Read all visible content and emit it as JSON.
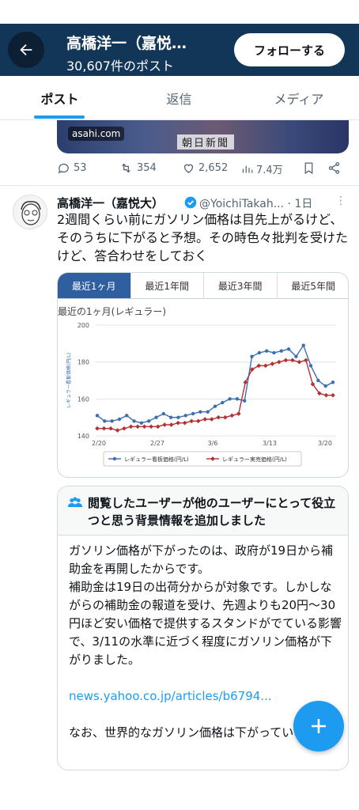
{
  "header": {
    "name": "高橋洋一（嘉悦…",
    "post_count": "30,607件のポスト",
    "follow_label": "フォローする"
  },
  "tabs": [
    {
      "label": "ポスト",
      "active": true
    },
    {
      "label": "返信",
      "active": false
    },
    {
      "label": "メディア",
      "active": false
    }
  ],
  "prev_tweet": {
    "image_source": "asahi.com",
    "image_caption": "朝日新聞",
    "replies": "53",
    "retweets": "354",
    "likes": "2,652",
    "views": "7.4万"
  },
  "tweet": {
    "author_name": "高橋洋一（嘉悦大）",
    "handle": "@YoichiTakah...",
    "time": "· 1日",
    "text": "2週間くらい前にガソリン価格は目先上がるけど、そのうちに下がると予想。その時色々批判を受けたけど、答合わせをしておく",
    "chart_tabs": [
      "最近1ヶ月",
      "最近1年間",
      "最近3年間",
      "最近5年間"
    ],
    "chart_heading": "最近の1ヶ月(レギュラー)"
  },
  "chart_data": {
    "type": "line",
    "title": "最近の1ヶ月(レギュラー)",
    "ylabel": "レギュラー看板価格(円/L)",
    "ylim": [
      140,
      200
    ],
    "yticks": [
      "200",
      "180",
      "160",
      "140"
    ],
    "xticks": [
      "2/20",
      "2/27",
      "3/6",
      "3/13",
      "3/20"
    ],
    "series": [
      {
        "name": "レギュラー看板価格(円/L)",
        "color": "#3a6fb0",
        "values": [
          151,
          148,
          148,
          149,
          151,
          148,
          147,
          148,
          150,
          152,
          150,
          150,
          151,
          152,
          153,
          153,
          156,
          158,
          160,
          160,
          159,
          183,
          185,
          186,
          185,
          186,
          187,
          183,
          189,
          178,
          170,
          167,
          169
        ]
      },
      {
        "name": "レギュラー実売価格(円/L)",
        "color": "#b53131",
        "values": [
          144,
          144,
          144,
          143,
          144,
          145,
          145,
          145,
          145,
          145,
          146,
          146,
          147,
          147,
          148,
          148,
          149,
          149,
          150,
          150,
          151,
          152,
          169,
          176,
          178,
          178,
          179,
          180,
          181,
          181,
          180,
          181,
          168,
          163,
          162,
          162
        ]
      }
    ]
  },
  "note": {
    "title": "閲覧したユーザーが他のユーザーにとって役立つと思う背景情報を追加しました",
    "paragraph1": "ガソリン価格が下がったのは、政府が19日から補助金を再開したからです。",
    "paragraph2": "補助金は19日の出荷分からが対象です。しかしながらの補助金の報道を受け、先週よりも20円〜30円ほど安い価格で提供するスタンドがでている影響で、3/11の水準に近づく程度にガソリン価格が下がりました。",
    "link": "news.yahoo.co.jp/articles/b6794...",
    "paragraph3": "なお、世界的なガソリン価格は下がっていません。"
  }
}
